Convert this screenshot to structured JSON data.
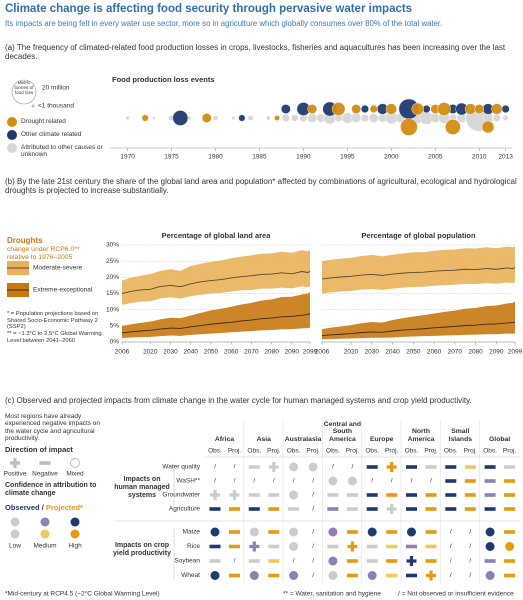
{
  "header": {
    "title": "Climate change is affecting food security through pervasive water impacts",
    "subtitle": "Its impacts are being felt in every water use sector, more so in agriculture which globally consumes over 80% of the total water."
  },
  "panel_a": {
    "caption": "(a) The frequency of climated-related food production losses in crops, livestocks, fisheries and aquacultures has been increasing over the last decades.",
    "size_legend_title": "Metric tonnes of food loss"
  },
  "panel_b": {
    "caption": "(b) By the late 21st century the share of the global land area and population* affected by combinations of agricultural, ecological and hydrological droughts is projected to increase substantially.",
    "legend_title": "Droughts",
    "legend_subtitle": "change under RCP6.0** relative to 1976–2005",
    "notes": [
      "* = Population projections based on Shared Socio-Economic Pathway 2 (SSP2)",
      "** = ~1.3°C to 2.5°C Global Warming Level between 2041–2060"
    ]
  },
  "panel_c": {
    "caption": "(c) Observed and projected impacts from climate change in the water cycle for human managed systems and crop yield productivity.",
    "intro": "Most regions have already experienced negative impacts on the water cycle and agricultural productivity.",
    "direction_title": "Direction of impact",
    "directions": [
      "Positive",
      "Negative",
      "Mixed"
    ],
    "confidence_title": "Confidence in attribution to climate change",
    "obs_proj": [
      "Observed",
      " / ",
      "Projected*"
    ],
    "confidence_levels": [
      "Low",
      "Medium",
      "High"
    ],
    "regions": [
      "Africa",
      "Asia",
      "Australasia",
      "Central and South America",
      "Europe",
      "North America",
      "Small Islands",
      "Global"
    ],
    "sub_columns": [
      "Obs.",
      "Proj."
    ],
    "groups": [
      {
        "label": "Impacts on human managed systems",
        "rows": [
          {
            "label": "Water quality",
            "cells": [
              "/",
              "/",
              "-L",
              "+L",
              "oL",
              "oL",
              "/",
              "/",
              "-H",
              "+H",
              "-H",
              "-L",
              "-H",
              "-M",
              "-H",
              "-L"
            ]
          },
          {
            "label": "WaSH**",
            "cells": [
              "/",
              "/",
              "/",
              "/",
              "/",
              "/",
              "oL",
              "oL",
              "/",
              "/",
              "/",
              "/",
              "-H",
              "-H",
              "-M",
              "-H"
            ]
          },
          {
            "label": "Groundwater",
            "cells": [
              "+L",
              "+L",
              "-L",
              "-L",
              "oL",
              "/",
              "-L",
              "-L",
              "-H",
              "-H",
              "-H",
              "-H",
              "-H",
              "-H",
              "-M",
              "-H"
            ]
          },
          {
            "label": "Agriculture",
            "cells": [
              "-H",
              "-H",
              "-H",
              "-H",
              "-L",
              "/",
              "-M",
              "-L",
              "-H",
              "+L",
              "-H",
              "-H",
              "-H",
              "-H",
              "-H",
              "-H"
            ]
          }
        ]
      },
      {
        "label": "Impacts on crop yield productivity",
        "rows": [
          {
            "label": "Maize",
            "cells": [
              "oH",
              "-H",
              "oL",
              "-H",
              "oL",
              "/",
              "oM",
              "-H",
              "oH",
              "-H",
              "oH",
              "-H",
              "/",
              "/",
              "oH",
              "-H"
            ]
          },
          {
            "label": "Rice",
            "cells": [
              "-H",
              "-H",
              "+M",
              "-L",
              "oL",
              "/",
              "-L",
              "+H",
              "-L",
              "-M",
              "-M",
              "-M",
              "/",
              "/",
              "oH",
              "oH"
            ]
          },
          {
            "label": "Soybean",
            "cells": [
              "-L",
              "/",
              "-L",
              "-M",
              "/",
              "/",
              "oM",
              "-H",
              "-L",
              "-H",
              "+H",
              "-H",
              "/",
              "/",
              "-M",
              "-H"
            ]
          },
          {
            "label": "Wheat",
            "cells": [
              "oH",
              "-H",
              "oM",
              "-H",
              "oM",
              "/",
              "oL",
              "-H",
              "oM",
              "-M",
              "-H",
              "+H",
              "/",
              "/",
              "oM",
              "-H"
            ]
          }
        ]
      }
    ],
    "footnotes": [
      "*Mid-century at RCP4.5 (~2°C Global Warming Level)",
      "** = Water, sanitation and hygiene",
      "/ = Not observed or insufficient evidence"
    ]
  },
  "chart_data": [
    {
      "type": "bubble",
      "title": "Food production loss events",
      "xlim": [
        1968,
        2013.5
      ],
      "xticks": [
        1970,
        1975,
        1980,
        1985,
        1990,
        1995,
        2000,
        2005,
        2010,
        2013
      ],
      "size_legend": [
        {
          "value": 20,
          "label": "20 million"
        },
        {
          "value": 0.001,
          "label": "<1 thousand"
        }
      ],
      "series": [
        {
          "name": "Drought related",
          "color": "#d58c12",
          "x": [
            1972,
            1979,
            1987,
            1991,
            1994,
            1996,
            1998,
            2000,
            2002,
            2003,
            2005,
            2006,
            2007,
            2009,
            2010,
            2011,
            2012
          ],
          "sizes": [
            1.5,
            3,
            1,
            3,
            6,
            3,
            2,
            4,
            10,
            5,
            3,
            6,
            8,
            4,
            3,
            5,
            4
          ]
        },
        {
          "name": "Other climate related",
          "color": "#1e3a6e",
          "x": [
            1976,
            1983,
            1988,
            1990,
            1993,
            1997,
            1999,
            2002,
            2004,
            2007,
            2008,
            2011,
            2013
          ],
          "sizes": [
            8,
            1.5,
            3,
            6,
            7,
            2,
            4,
            14,
            2,
            3,
            5,
            4,
            2
          ]
        },
        {
          "name": "Attributed to other causes or unknown",
          "color": "#d6d6d6",
          "x": [
            1970,
            1973,
            1975,
            1977,
            1980,
            1982,
            1984,
            1986,
            1988,
            1989,
            1990,
            1991,
            1992,
            1993,
            1994,
            1995,
            1996,
            1997,
            1998,
            1999,
            2000,
            2001,
            2002,
            2003,
            2004,
            2005,
            2006,
            2007,
            2008,
            2009,
            2010,
            2011,
            2012,
            2013
          ],
          "sizes": [
            0.5,
            0.3,
            1,
            0.5,
            0.8,
            0.4,
            1,
            0.6,
            2,
            1.5,
            2,
            3,
            2.5,
            5,
            2,
            4,
            3,
            2,
            3,
            2.5,
            5,
            3,
            2,
            4,
            6,
            3,
            4,
            2,
            3,
            4,
            25,
            3,
            2,
            1
          ]
        }
      ]
    },
    {
      "type": "line",
      "title": "Percentage of global land area",
      "x": [
        2006,
        2010,
        2015,
        2020,
        2025,
        2030,
        2035,
        2040,
        2045,
        2050,
        2055,
        2060,
        2065,
        2070,
        2075,
        2080,
        2085,
        2090,
        2095,
        2098,
        2099
      ],
      "xlim": [
        2006,
        2099
      ],
      "xticks": [
        2006,
        2020,
        2030,
        2040,
        2050,
        2060,
        2070,
        2080,
        2090,
        2099
      ],
      "ylim": [
        0,
        30
      ],
      "yticks": [
        {
          "value": 0,
          "label": "0%"
        },
        {
          "value": 5,
          "label": "5%"
        },
        {
          "value": 10,
          "label": "10%"
        },
        {
          "value": 15,
          "label": "15%"
        },
        {
          "value": 20,
          "label": "20%"
        },
        {
          "value": 25,
          "label": "25%"
        },
        {
          "value": 30,
          "label": "30%"
        }
      ],
      "grid": true,
      "series": [
        {
          "name": "Moderate-severe",
          "color": "#5b4632",
          "band_color": "#e8b15a",
          "values": [
            15,
            15.6,
            16.1,
            16.3,
            17.2,
            17.5,
            17.1,
            18.0,
            18.6,
            19.0,
            19.3,
            19.8,
            20.2,
            20.5,
            20.9,
            21.0,
            21.4,
            21.1,
            21.8,
            21.5,
            21.9
          ],
          "lower": [
            11.5,
            12,
            12.5,
            12.6,
            13.5,
            13.8,
            13.4,
            14.2,
            14.6,
            15,
            15.2,
            15.6,
            16,
            16.1,
            16.5,
            16.5,
            16.8,
            16.6,
            17.2,
            16.9,
            17.2
          ],
          "upper": [
            19,
            19.8,
            20.5,
            21,
            22,
            22.5,
            22,
            23.5,
            24.2,
            24.8,
            25.2,
            25.9,
            26.4,
            26.8,
            27.3,
            27.4,
            27.9,
            27.6,
            28.4,
            28,
            28.5
          ]
        },
        {
          "name": "Extreme-exceptional",
          "color": "#3b2a1a",
          "band_color": "#c7780f",
          "values": [
            2.8,
            3.1,
            3.4,
            3.6,
            4,
            4.3,
            4.2,
            4.7,
            5.1,
            5.5,
            5.8,
            6.1,
            6.5,
            6.8,
            7.2,
            7.4,
            7.8,
            7.9,
            8.3,
            8.5,
            8.8
          ],
          "lower": [
            1.2,
            1.4,
            1.5,
            1.6,
            1.8,
            2,
            1.9,
            2.2,
            2.4,
            2.6,
            2.8,
            3,
            3.2,
            3.4,
            3.6,
            3.7,
            3.9,
            4,
            4.2,
            4.3,
            4.5
          ],
          "upper": [
            5,
            5.4,
            5.9,
            6.3,
            7,
            7.5,
            7.4,
            8.2,
            9,
            9.8,
            10.3,
            10.9,
            11.6,
            12.1,
            12.8,
            13.2,
            13.9,
            14,
            14.7,
            15,
            15.5
          ]
        }
      ]
    },
    {
      "type": "line",
      "title": "Percentage of global population",
      "x": [
        2006,
        2010,
        2015,
        2020,
        2025,
        2030,
        2035,
        2040,
        2045,
        2050,
        2055,
        2060,
        2065,
        2070,
        2075,
        2080,
        2085,
        2090,
        2095,
        2098,
        2099
      ],
      "xlim": [
        2006,
        2099
      ],
      "xticks": [
        2006,
        2020,
        2030,
        2040,
        2050,
        2060,
        2070,
        2080,
        2090,
        2099
      ],
      "ylim": [
        0,
        30
      ],
      "yticks": [
        0,
        5,
        10,
        15,
        20,
        25,
        30
      ],
      "grid": true,
      "series": [
        {
          "color": "#5b4632",
          "band_color": "#e8b15a",
          "values": [
            19.5,
            19.8,
            20.1,
            20.3,
            20.7,
            20.9,
            20.6,
            21,
            21.3,
            21.5,
            21.6,
            21.9,
            22.1,
            22.2,
            22.5,
            22.4,
            22.7,
            22.5,
            22.9,
            22.7,
            23
          ],
          "lower": [
            15,
            15.3,
            15.6,
            15.8,
            16.2,
            16.4,
            16.1,
            16.5,
            16.8,
            17,
            17.1,
            17.4,
            17.6,
            17.7,
            18,
            17.9,
            18.2,
            18,
            18.4,
            18.2,
            18.5
          ],
          "upper": [
            25,
            25.4,
            25.8,
            26,
            26.6,
            26.9,
            26.5,
            27,
            27.4,
            27.7,
            27.8,
            28.2,
            28.5,
            28.6,
            29,
            28.9,
            29.3,
            29,
            29.5,
            29.3,
            29.6
          ]
        },
        {
          "color": "#3b2a1a",
          "band_color": "#c7780f",
          "values": [
            2,
            2.2,
            2.4,
            2.6,
            2.9,
            3.1,
            3,
            3.4,
            3.7,
            3.9,
            4.1,
            4.4,
            4.6,
            4.8,
            5.1,
            5.2,
            5.5,
            5.6,
            5.9,
            6,
            6.2
          ],
          "lower": [
            0.8,
            0.9,
            1,
            1.1,
            1.2,
            1.3,
            1.3,
            1.4,
            1.6,
            1.7,
            1.8,
            1.9,
            2,
            2.1,
            2.2,
            2.3,
            2.4,
            2.4,
            2.6,
            2.6,
            2.7
          ],
          "upper": [
            4,
            4.4,
            4.8,
            5.2,
            5.8,
            6.2,
            6,
            6.8,
            7.4,
            7.9,
            8.3,
            8.8,
            9.3,
            9.7,
            10.3,
            10.5,
            11.1,
            11.3,
            11.9,
            12.1,
            12.6
          ]
        }
      ]
    }
  ]
}
